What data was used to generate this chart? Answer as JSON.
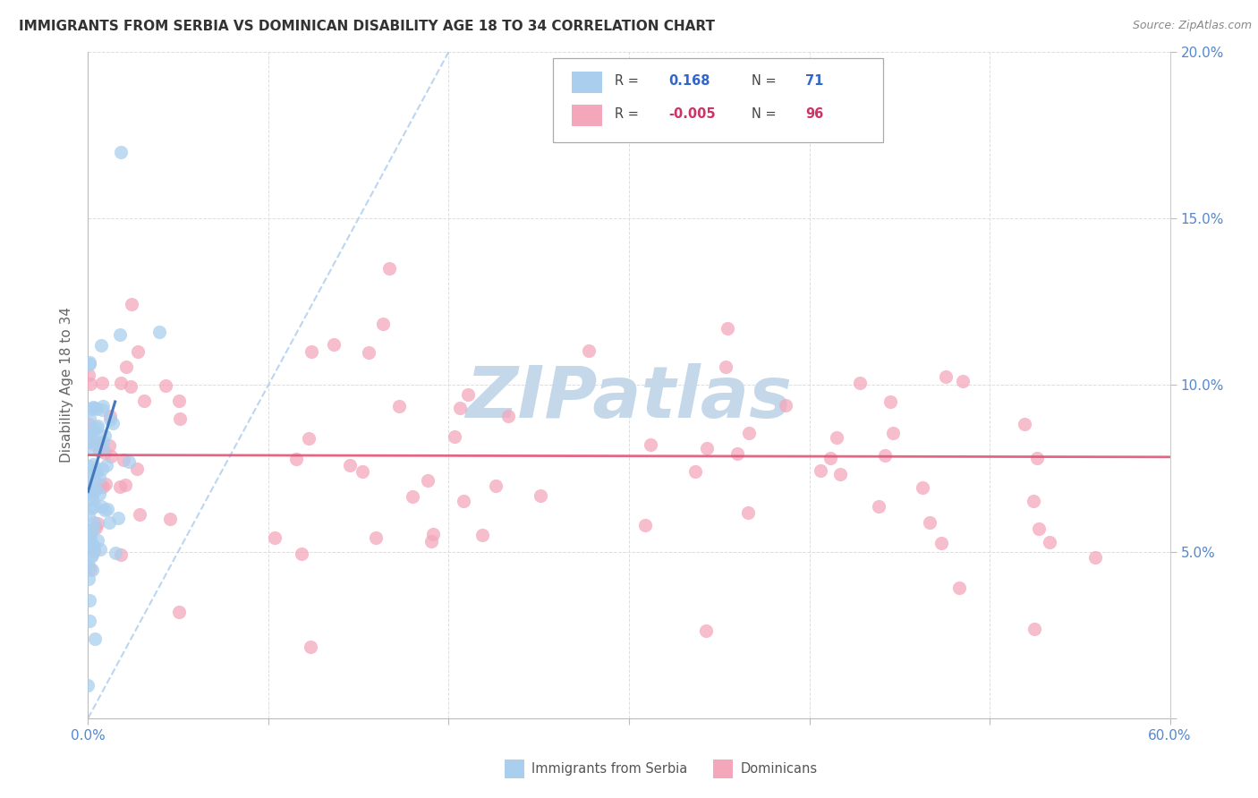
{
  "title": "IMMIGRANTS FROM SERBIA VS DOMINICAN DISABILITY AGE 18 TO 34 CORRELATION CHART",
  "source": "Source: ZipAtlas.com",
  "ylabel": "Disability Age 18 to 34",
  "xlim": [
    0.0,
    0.6
  ],
  "ylim": [
    0.0,
    0.2
  ],
  "xtick_vals": [
    0.0,
    0.1,
    0.2,
    0.3,
    0.4,
    0.5,
    0.6
  ],
  "ytick_vals": [
    0.0,
    0.05,
    0.1,
    0.15,
    0.2
  ],
  "xtick_labels": [
    "0.0%",
    "",
    "",
    "",
    "",
    "",
    "60.0%"
  ],
  "ytick_labels": [
    "",
    "5.0%",
    "10.0%",
    "15.0%",
    "20.0%"
  ],
  "legend_R_serbia": "0.168",
  "legend_N_serbia": "71",
  "legend_R_dominican": "-0.005",
  "legend_N_dominican": "96",
  "serbia_color": "#aacfee",
  "dominican_color": "#f4a7bb",
  "serbia_line_color": "#4477bb",
  "dominican_line_color": "#e05575",
  "ref_line_color": "#aaccee",
  "tick_color": "#5588cc",
  "watermark": "ZIPatlas",
  "watermark_color": "#c5d8ea"
}
